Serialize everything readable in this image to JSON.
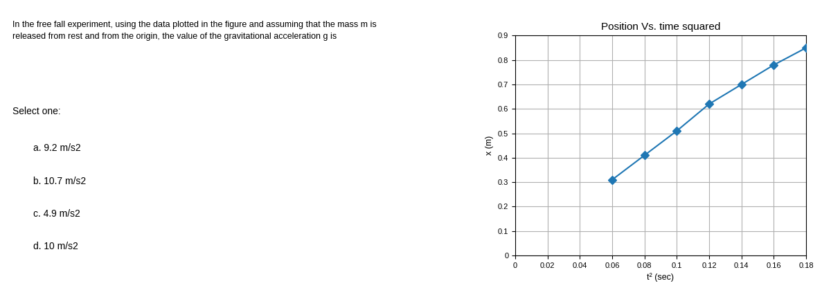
{
  "chart_data": {
    "type": "line",
    "title": "Position Vs. time squared",
    "xlabel": "t² (sec)",
    "ylabel": "x (m)",
    "x": [
      0.06,
      0.08,
      0.1,
      0.12,
      0.14,
      0.16,
      0.18
    ],
    "values": [
      0.31,
      0.41,
      0.51,
      0.62,
      0.7,
      0.78,
      0.85
    ],
    "xlim": [
      0,
      0.18
    ],
    "ylim": [
      0,
      0.9
    ],
    "xticks": [
      0,
      0.02,
      0.04,
      0.06,
      0.08,
      0.1,
      0.12,
      0.14,
      0.16,
      0.18
    ],
    "yticks": [
      0,
      0.1,
      0.2,
      0.3,
      0.4,
      0.5,
      0.6,
      0.7,
      0.8,
      0.9
    ],
    "grid": true,
    "marker": "diamond",
    "line_style": "solid",
    "annotations": [
      "In the free fall experiment, using the data plotted in the figure and assuming that the mass m is\nreleased from rest and from the origin, the value of the gravitational acceleration g is",
      "Select one:",
      "a. 9.2 m/s2",
      "b. 10.7 m/s2",
      "c. 4.9 m/s2",
      "d. 10 m/s2"
    ]
  }
}
